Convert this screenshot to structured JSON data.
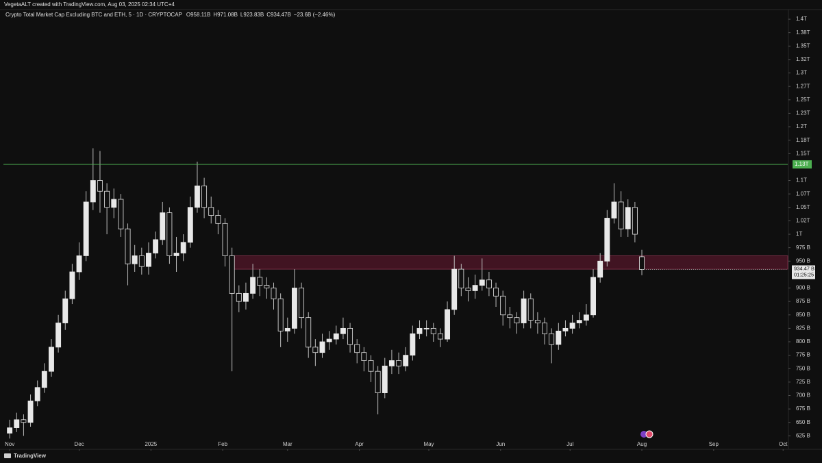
{
  "header": {
    "credit": "VegetaALT created with TradingView.com, Aug 03, 2025 02:34 UTC+4",
    "brand": "TradingView"
  },
  "chart_data": {
    "type": "candlestick",
    "title": "Crypto Total Market Cap Excluding BTC and ETH, 5 · 1D · CRYPTOCAP",
    "ohlc_prefix": [
      "O",
      "H",
      "L",
      "C"
    ],
    "ohlc_labels": [
      "958.11B",
      "971.08B",
      "923.83B",
      "934.47B"
    ],
    "change_label": "−23.6B (−2.46%)",
    "up_color": "#e8e8e8",
    "down_color": "#111111",
    "wick_color": "#bdbdbd",
    "x": [
      0,
      3,
      6,
      9,
      12,
      15,
      18,
      21,
      24,
      27,
      30,
      33,
      36,
      39,
      42,
      45,
      48,
      51,
      54,
      57,
      60,
      63,
      66,
      69,
      72,
      75,
      78,
      81,
      84,
      87,
      90,
      93,
      96,
      99,
      102,
      105,
      108,
      111,
      114,
      117,
      120,
      123,
      126,
      129,
      132,
      135,
      138,
      141,
      144,
      147,
      150,
      153,
      156,
      159,
      162,
      165,
      168,
      171,
      174,
      177,
      180,
      183,
      186,
      189,
      192,
      195,
      198,
      201,
      204,
      207,
      210,
      213,
      216,
      219,
      222,
      225,
      228,
      231,
      234,
      237,
      240,
      243,
      246,
      249,
      252,
      255,
      258,
      261,
      264,
      267,
      270,
      273
    ],
    "open": [
      630,
      640,
      655,
      650,
      690,
      715,
      745,
      790,
      835,
      880,
      930,
      960,
      1060,
      1100,
      1080,
      1050,
      1065,
      1010,
      945,
      960,
      940,
      965,
      990,
      1040,
      960,
      965,
      985,
      1050,
      1090,
      1050,
      1035,
      1020,
      960,
      890,
      875,
      890,
      920,
      905,
      900,
      880,
      820,
      825,
      900,
      845,
      790,
      780,
      800,
      805,
      815,
      825,
      795,
      780,
      765,
      745,
      705,
      755,
      765,
      755,
      775,
      815,
      825,
      825,
      815,
      805,
      860,
      935,
      900,
      895,
      905,
      915,
      900,
      885,
      850,
      845,
      835,
      880,
      840,
      835,
      815,
      795,
      820,
      825,
      835,
      840,
      850,
      920,
      950,
      1030,
      1060,
      1010,
      1050,
      958.11
    ],
    "high": [
      655,
      668,
      665,
      702,
      728,
      760,
      805,
      850,
      895,
      945,
      985,
      1080,
      1160,
      1155,
      1095,
      1085,
      1075,
      1020,
      980,
      975,
      985,
      1005,
      1060,
      1050,
      995,
      1000,
      1070,
      1135,
      1105,
      1070,
      1045,
      1030,
      975,
      905,
      910,
      945,
      935,
      920,
      910,
      890,
      845,
      935,
      910,
      855,
      805,
      815,
      820,
      830,
      845,
      835,
      805,
      790,
      775,
      755,
      770,
      785,
      780,
      790,
      830,
      840,
      840,
      835,
      825,
      875,
      960,
      945,
      920,
      925,
      955,
      930,
      910,
      895,
      865,
      855,
      895,
      890,
      855,
      845,
      825,
      835,
      840,
      850,
      855,
      870,
      935,
      965,
      1045,
      1095,
      1080,
      1065,
      1060,
      971.08
    ],
    "low": [
      620,
      632,
      625,
      642,
      680,
      705,
      735,
      780,
      822,
      870,
      915,
      950,
      1045,
      1040,
      1000,
      1030,
      995,
      905,
      930,
      925,
      925,
      955,
      980,
      945,
      930,
      950,
      975,
      1040,
      1030,
      1020,
      1000,
      940,
      745,
      855,
      860,
      880,
      885,
      880,
      860,
      790,
      800,
      815,
      825,
      770,
      755,
      770,
      785,
      795,
      805,
      780,
      760,
      745,
      725,
      665,
      695,
      740,
      740,
      745,
      765,
      805,
      810,
      800,
      790,
      800,
      850,
      885,
      875,
      880,
      895,
      885,
      865,
      830,
      825,
      815,
      825,
      825,
      815,
      795,
      760,
      785,
      810,
      815,
      825,
      830,
      845,
      910,
      940,
      1020,
      995,
      995,
      985,
      923.83
    ],
    "close": [
      640,
      655,
      650,
      690,
      715,
      745,
      790,
      835,
      880,
      930,
      960,
      1060,
      1100,
      1080,
      1050,
      1065,
      1010,
      945,
      960,
      940,
      965,
      990,
      1040,
      960,
      965,
      985,
      1050,
      1090,
      1050,
      1035,
      1020,
      960,
      890,
      875,
      890,
      920,
      905,
      900,
      880,
      820,
      825,
      900,
      845,
      790,
      780,
      800,
      805,
      815,
      825,
      795,
      780,
      765,
      745,
      705,
      755,
      765,
      755,
      775,
      815,
      825,
      825,
      815,
      805,
      860,
      935,
      900,
      895,
      905,
      915,
      900,
      885,
      850,
      845,
      835,
      880,
      840,
      835,
      815,
      795,
      820,
      825,
      835,
      840,
      850,
      920,
      950,
      1030,
      1060,
      1010,
      1050,
      1000,
      934.47
    ],
    "last_price_label": "934.47 B",
    "countdown": "01:25:25",
    "resistance": {
      "value": 1130,
      "label": "1.13T",
      "color": "#4caf50"
    },
    "zone": {
      "x_start": 95,
      "low": 935,
      "high": 960,
      "color": "#4a1526"
    },
    "xlim": [
      -2.7,
      336
    ],
    "xticks": [
      {
        "value": 0,
        "label": "Nov"
      },
      {
        "value": 30,
        "label": "Dec"
      },
      {
        "value": 61,
        "label": "2025"
      },
      {
        "value": 92,
        "label": "Feb"
      },
      {
        "value": 120,
        "label": "Mar"
      },
      {
        "value": 151,
        "label": "Apr"
      },
      {
        "value": 181,
        "label": "May"
      },
      {
        "value": 212,
        "label": "Jun"
      },
      {
        "value": 242,
        "label": "Jul"
      },
      {
        "value": 273,
        "label": "Aug"
      },
      {
        "value": 304,
        "label": "Sep"
      },
      {
        "value": 334,
        "label": "Oct"
      }
    ],
    "ylim": [
      614,
      1423
    ],
    "yticks": [
      {
        "value": 1400,
        "label": "1.4T"
      },
      {
        "value": 1375,
        "label": "1.38T"
      },
      {
        "value": 1350,
        "label": "1.35T"
      },
      {
        "value": 1325,
        "label": "1.32T"
      },
      {
        "value": 1300,
        "label": "1.3T"
      },
      {
        "value": 1275,
        "label": "1.27T"
      },
      {
        "value": 1250,
        "label": "1.25T"
      },
      {
        "value": 1225,
        "label": "1.23T"
      },
      {
        "value": 1200,
        "label": "1.2T"
      },
      {
        "value": 1175,
        "label": "1.18T"
      },
      {
        "value": 1150,
        "label": "1.15T"
      },
      {
        "value": 1100,
        "label": "1.1T"
      },
      {
        "value": 1075,
        "label": "1.07T"
      },
      {
        "value": 1050,
        "label": "1.05T"
      },
      {
        "value": 1025,
        "label": "1.02T"
      },
      {
        "value": 1000,
        "label": "1T"
      },
      {
        "value": 975,
        "label": "975 B"
      },
      {
        "value": 950,
        "label": "950 B"
      },
      {
        "value": 900,
        "label": "900 B"
      },
      {
        "value": 875,
        "label": "875 B"
      },
      {
        "value": 850,
        "label": "850 B"
      },
      {
        "value": 825,
        "label": "825 B"
      },
      {
        "value": 800,
        "label": "800 B"
      },
      {
        "value": 775,
        "label": "775 B"
      },
      {
        "value": 750,
        "label": "750 B"
      },
      {
        "value": 725,
        "label": "725 B"
      },
      {
        "value": 700,
        "label": "700 B"
      },
      {
        "value": 675,
        "label": "675 B"
      },
      {
        "value": 650,
        "label": "650 B"
      },
      {
        "value": 625,
        "label": "625 B"
      }
    ],
    "grid": false
  }
}
